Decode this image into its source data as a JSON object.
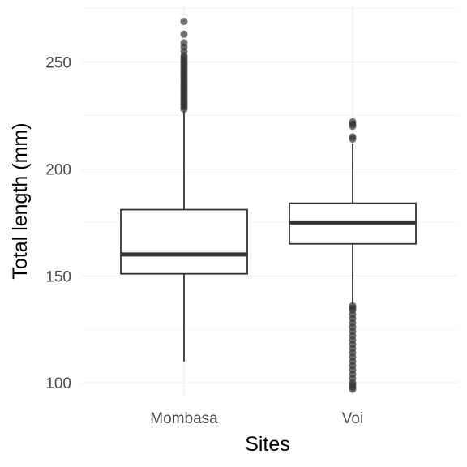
{
  "chart_data": {
    "type": "boxplot",
    "xlabel": "Sites",
    "ylabel": "Total length (mm)",
    "categories": [
      "Mombasa",
      "Voi"
    ],
    "ylim": [
      94,
      276
    ],
    "yticks": [
      100,
      150,
      200,
      250
    ],
    "grid": true,
    "boxes": [
      {
        "category": "Mombasa",
        "whisker_low": 110,
        "q1": 151,
        "median": 160,
        "q3": 181,
        "whisker_high": 227,
        "outliers": [
          228,
          229,
          230,
          231,
          232,
          233,
          234,
          235,
          236,
          237,
          238,
          239,
          240,
          241,
          242,
          243,
          244,
          245,
          246,
          247,
          248,
          249,
          250,
          251,
          252,
          253,
          255,
          257,
          259,
          263,
          269
        ]
      },
      {
        "category": "Voi",
        "whisker_low": 137,
        "q1": 165,
        "median": 175,
        "q3": 184,
        "whisker_high": 212,
        "outliers": [
          97,
          98,
          99,
          100,
          102,
          104,
          106,
          108,
          110,
          112,
          114,
          116,
          118,
          120,
          122,
          124,
          126,
          128,
          130,
          132,
          134,
          135,
          136,
          214,
          215,
          220,
          221,
          222
        ]
      }
    ],
    "colors": {
      "box_line": "#333333",
      "outlier": "#333333",
      "grid": "#ebebeb",
      "background": "#ffffff"
    }
  }
}
